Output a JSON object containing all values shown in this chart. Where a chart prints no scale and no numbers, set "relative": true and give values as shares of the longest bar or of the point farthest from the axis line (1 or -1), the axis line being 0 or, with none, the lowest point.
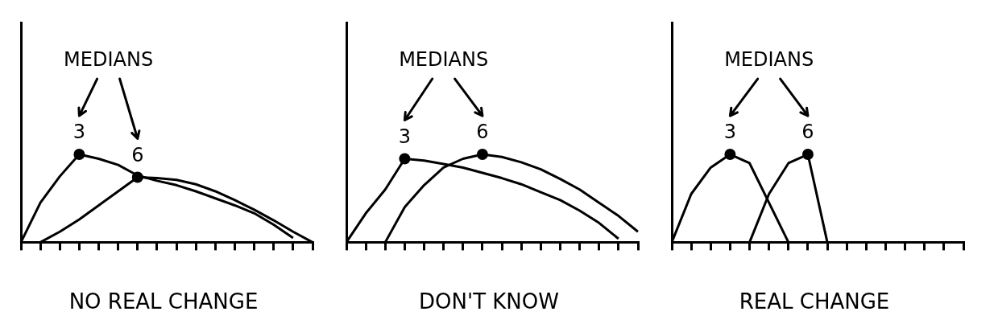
{
  "chart_data": [
    {
      "type": "line",
      "title": "NO REAL CHANGE",
      "relative": true,
      "categories": [
        null,
        null,
        null,
        null,
        null,
        null,
        null,
        null,
        null,
        null,
        null,
        null,
        null,
        null,
        null,
        null
      ],
      "annotations": [
        "MEDIANS",
        "3",
        "6"
      ],
      "series": [
        {
          "color": "#000000",
          "values": [
            0,
            0.45,
            0.75,
            1,
            0.95,
            0.88,
            0.76,
            0.7,
            0.65,
            0.58,
            0.5,
            0.42,
            0.33,
            0.2,
            0.05,
            null
          ]
        },
        {
          "color": "#000000",
          "values": [
            null,
            0,
            0.12,
            0.26,
            0.42,
            0.58,
            0.74,
            0.73,
            0.71,
            0.66,
            0.58,
            0.48,
            0.37,
            0.25,
            0.12,
            0
          ]
        }
      ]
    },
    {
      "type": "line",
      "title": "DON'T KNOW",
      "relative": true,
      "categories": [
        null,
        null,
        null,
        null,
        null,
        null,
        null,
        null,
        null,
        null,
        null,
        null,
        null,
        null,
        null,
        null
      ],
      "annotations": [
        "MEDIANS",
        "3",
        "6"
      ],
      "series": [
        {
          "color": "#000000",
          "values": [
            0,
            0.33,
            0.6,
            0.95,
            0.93,
            0.89,
            0.85,
            0.79,
            0.73,
            0.66,
            0.57,
            0.48,
            0.36,
            0.22,
            0.04,
            null
          ]
        },
        {
          "color": "#000000",
          "values": [
            null,
            null,
            0,
            0.4,
            0.65,
            0.85,
            0.95,
            1,
            0.97,
            0.91,
            0.83,
            0.72,
            0.6,
            0.45,
            0.3,
            0.12
          ]
        }
      ]
    },
    {
      "type": "line",
      "title": "REAL CHANGE",
      "relative": true,
      "categories": [
        null,
        null,
        null,
        null,
        null,
        null,
        null,
        null,
        null,
        null,
        null,
        null,
        null,
        null,
        null,
        null
      ],
      "annotations": [
        "MEDIANS",
        "3",
        "6"
      ],
      "series": [
        {
          "color": "#000000",
          "values": [
            0,
            0.55,
            0.85,
            1,
            0.9,
            0.45,
            0,
            null,
            null,
            null,
            null,
            null,
            null,
            null,
            null,
            null
          ]
        },
        {
          "color": "#000000",
          "values": [
            null,
            null,
            null,
            null,
            0,
            0.55,
            0.9,
            1,
            0,
            null,
            null,
            null,
            null,
            null,
            null,
            null
          ]
        }
      ]
    }
  ]
}
